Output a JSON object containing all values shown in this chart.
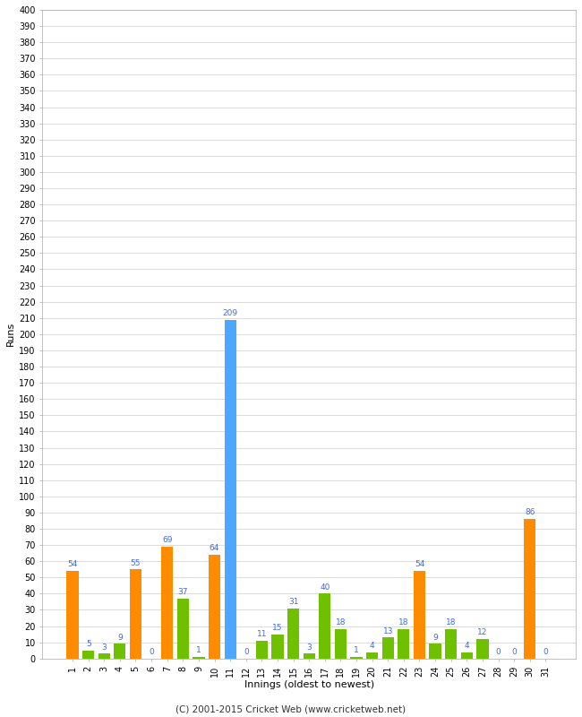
{
  "innings": [
    1,
    2,
    3,
    4,
    5,
    6,
    7,
    8,
    9,
    10,
    11,
    12,
    13,
    14,
    15,
    16,
    17,
    18,
    19,
    20,
    21,
    22,
    23,
    24,
    25,
    26,
    27,
    28,
    29,
    30,
    31
  ],
  "values": [
    54,
    5,
    3,
    9,
    55,
    0,
    69,
    37,
    1,
    64,
    209,
    0,
    11,
    15,
    31,
    3,
    40,
    18,
    1,
    4,
    13,
    18,
    54,
    9,
    18,
    4,
    12,
    0,
    0,
    86,
    0
  ],
  "colors": [
    "#ff8c00",
    "#6ec000",
    "#6ec000",
    "#6ec000",
    "#ff8c00",
    "#6ec000",
    "#ff8c00",
    "#6ec000",
    "#6ec000",
    "#ff8c00",
    "#4da6ff",
    "#6ec000",
    "#6ec000",
    "#6ec000",
    "#6ec000",
    "#6ec000",
    "#6ec000",
    "#6ec000",
    "#6ec000",
    "#6ec000",
    "#6ec000",
    "#6ec000",
    "#ff8c00",
    "#6ec000",
    "#6ec000",
    "#6ec000",
    "#6ec000",
    "#6ec000",
    "#6ec000",
    "#ff8c00",
    "#6ec000"
  ],
  "label_colors": [
    "#4169e1",
    "#4169e1",
    "#4169e1",
    "#4169e1",
    "#4169e1",
    "#4169e1",
    "#4169e1",
    "#4169e1",
    "#4169e1",
    "#4169e1",
    "#4169e1",
    "#4169e1",
    "#4169e1",
    "#4169e1",
    "#4169e1",
    "#4169e1",
    "#4169e1",
    "#4169e1",
    "#4169e1",
    "#4169e1",
    "#4169e1",
    "#4169e1",
    "#4169e1",
    "#4169e1",
    "#4169e1",
    "#4169e1",
    "#4169e1",
    "#4169e1",
    "#4169e1",
    "#4169e1",
    "#4169e1"
  ],
  "ylabel": "Runs",
  "xlabel": "Innings (oldest to newest)",
  "ylim": [
    0,
    400
  ],
  "background_color": "#ffffff",
  "grid_color": "#cccccc",
  "bar_width": 0.75,
  "footer": "(C) 2001-2015 Cricket Web (www.cricketweb.net)"
}
